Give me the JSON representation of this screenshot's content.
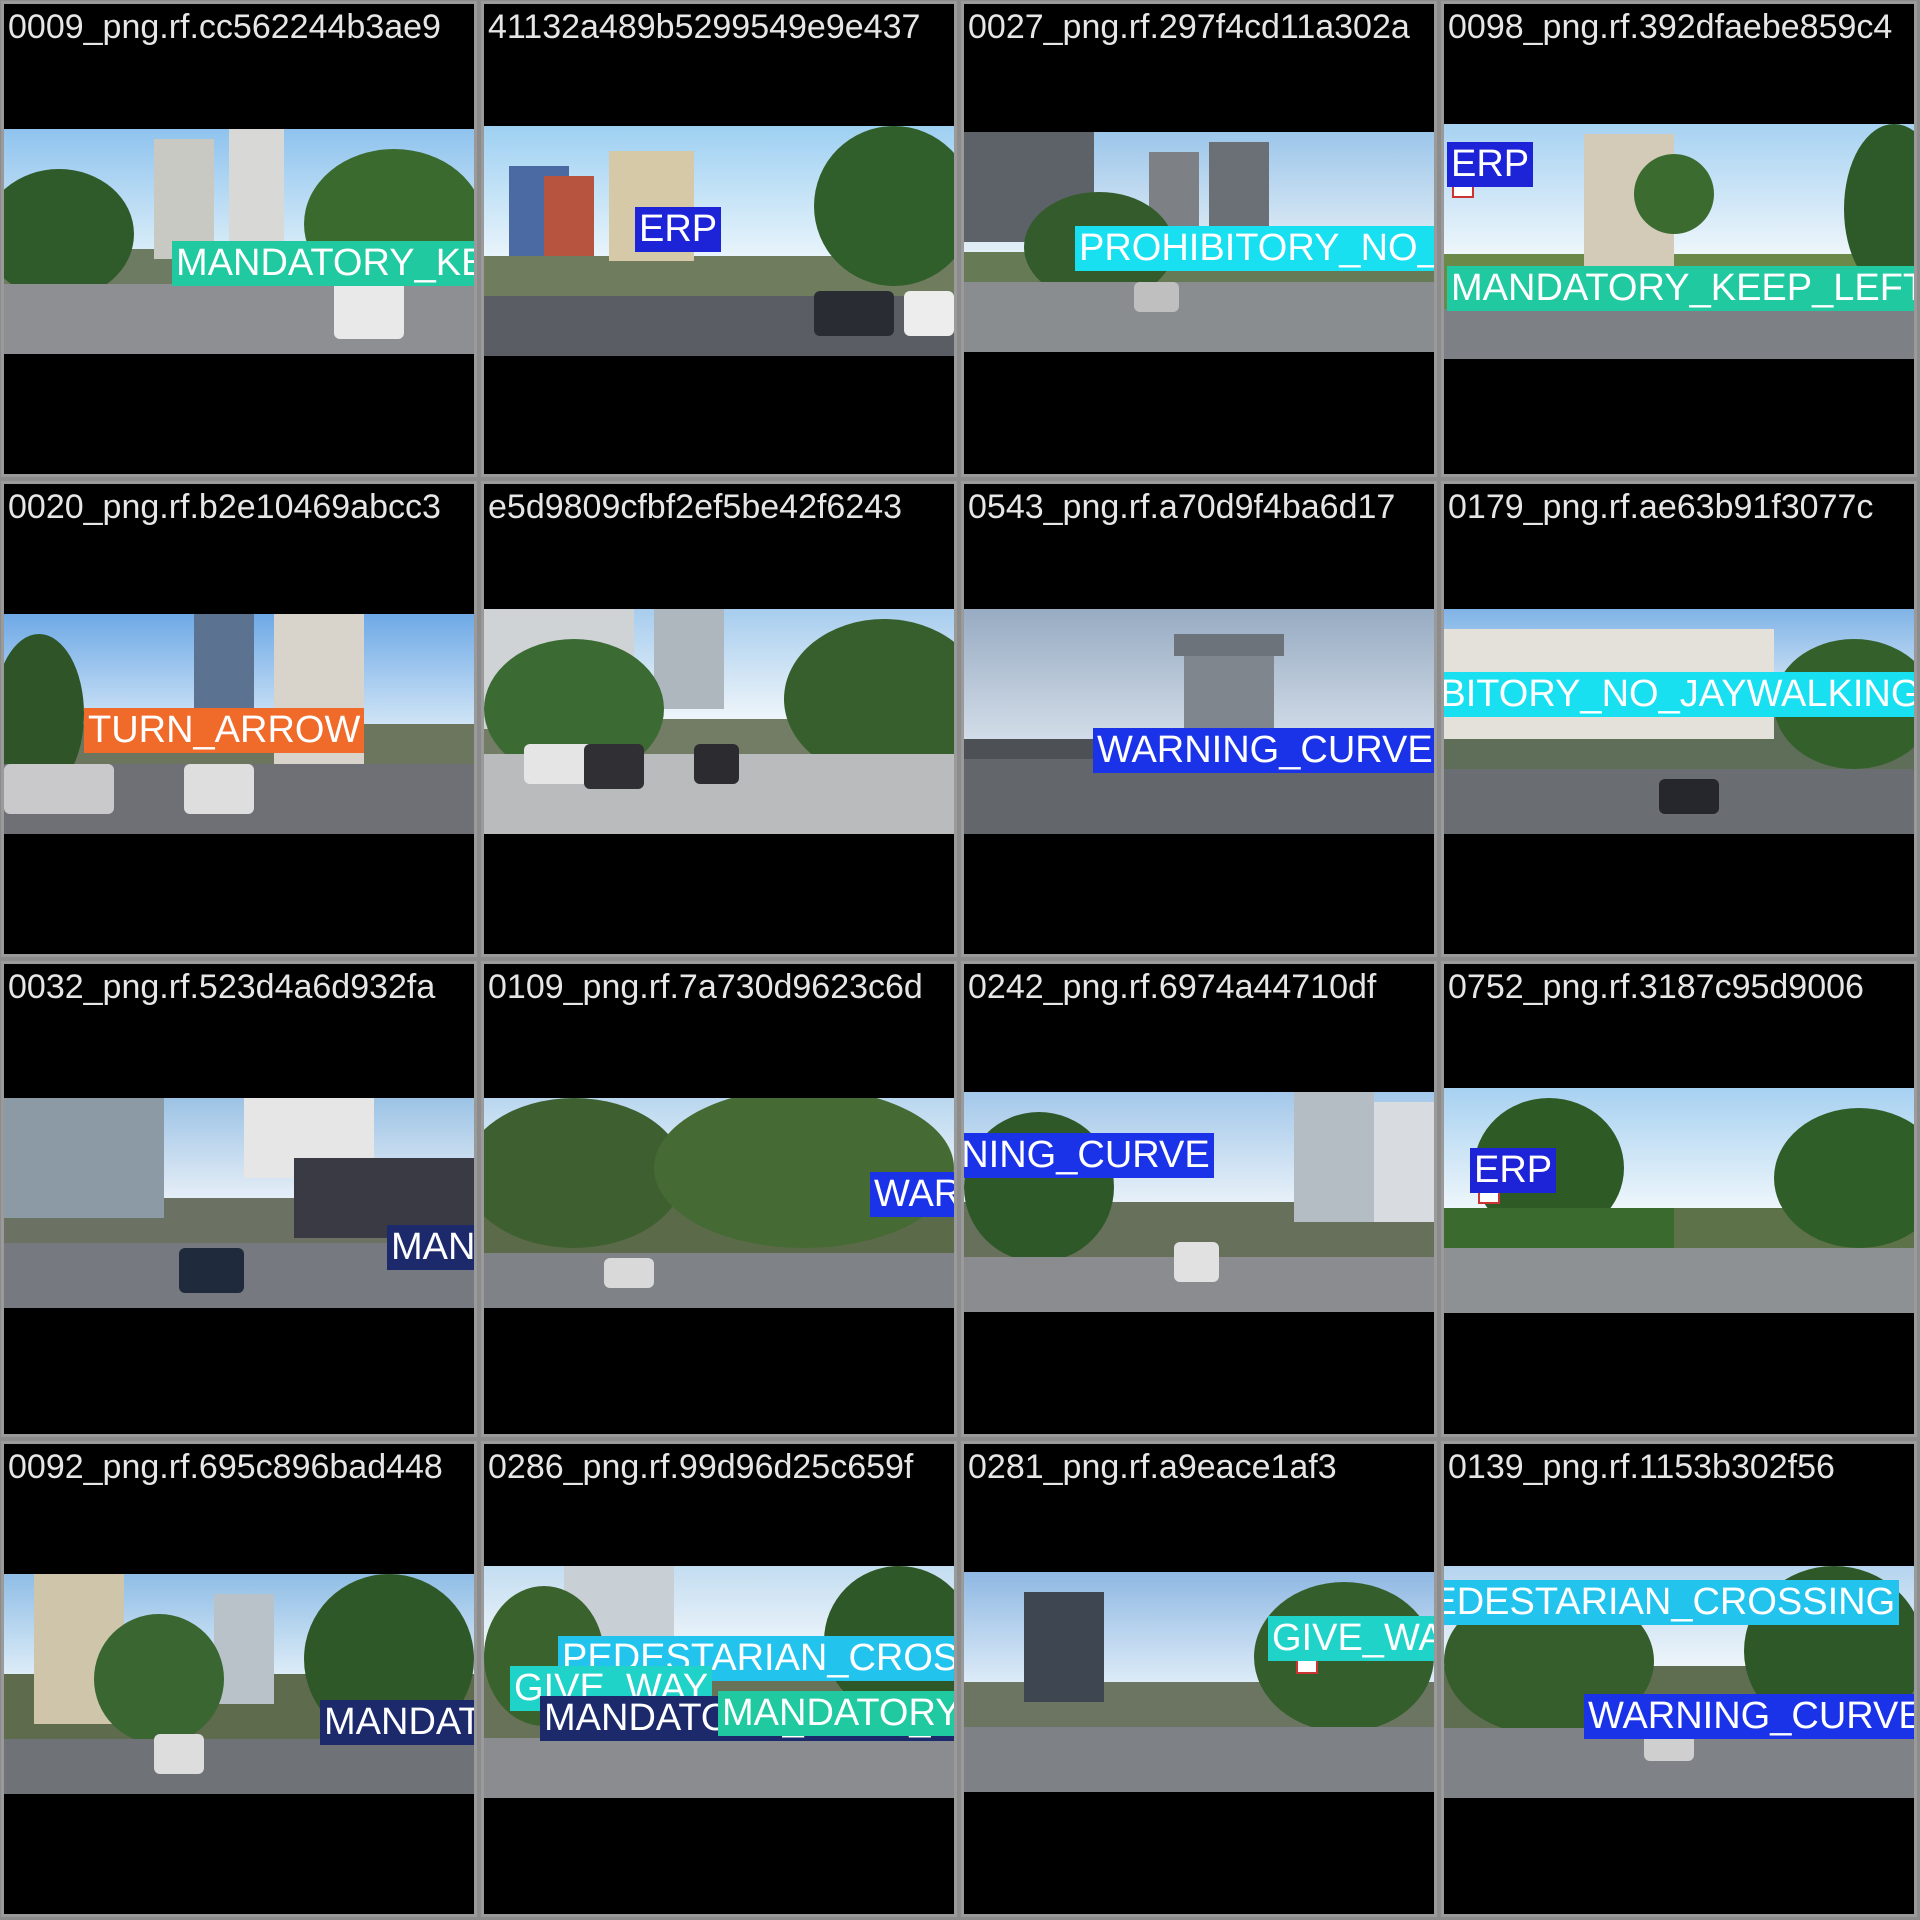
{
  "colors": {
    "erp": "#1d23d6",
    "mandatory_keep_left": "#20c9a0",
    "prohibitory_no_jaywalking": "#19e0f0",
    "turn_arrow": "#f06a2a",
    "warning_curve": "#1a32e8",
    "mandatory_split_way": "#1c2a6b",
    "give_way": "#1fd3c8",
    "pedestarian_crossing": "#22c4ee"
  },
  "tiles": [
    {
      "filename": "0009_png.rf.cc562244b3ae9",
      "labels": [
        {
          "text": "MANDATORY_KEEP_LEFT",
          "color_key": "mandatory_keep_left"
        }
      ]
    },
    {
      "filename": "41132a489b5299549e9e437",
      "labels": [
        {
          "text": "ERP",
          "color_key": "erp"
        }
      ]
    },
    {
      "filename": "0027_png.rf.297f4cd11a302a",
      "labels": [
        {
          "text": "PROHIBITORY_NO_JAYWALKING",
          "color_key": "prohibitory_no_jaywalking"
        }
      ]
    },
    {
      "filename": "0098_png.rf.392dfaebe859c4",
      "labels": [
        {
          "text": "ERP",
          "color_key": "erp"
        },
        {
          "text": "MANDATORY_KEEP_LEFT",
          "color_key": "mandatory_keep_left"
        }
      ]
    },
    {
      "filename": "0020_png.rf.b2e10469abcc3",
      "labels": [
        {
          "text": "TURN_ARROW",
          "color_key": "turn_arrow"
        }
      ]
    },
    {
      "filename": "e5d9809cfbf2ef5be42f6243",
      "labels": []
    },
    {
      "filename": "0543_png.rf.a70d9f4ba6d17",
      "labels": [
        {
          "text": "WARNING_CURVE",
          "color_key": "warning_curve"
        }
      ]
    },
    {
      "filename": "0179_png.rf.ae63b91f3077c",
      "labels": [
        {
          "text": "PROHIBITORY_NO_JAYWALKING",
          "color_key": "prohibitory_no_jaywalking"
        }
      ]
    },
    {
      "filename": "0032_png.rf.523d4a6d932fa",
      "labels": [
        {
          "text": "MANDATORY_SPLIT_WAY",
          "color_key": "mandatory_split_way"
        }
      ]
    },
    {
      "filename": "0109_png.rf.7a730d9623c6d",
      "labels": [
        {
          "text": "WARNING_CURVE",
          "color_key": "warning_curve"
        }
      ]
    },
    {
      "filename": "0242_png.rf.6974a44710df",
      "labels": [
        {
          "text": "WARNING_CURVE",
          "color_key": "warning_curve"
        }
      ]
    },
    {
      "filename": "0752_png.rf.3187c95d9006",
      "labels": [
        {
          "text": "ERP",
          "color_key": "erp"
        }
      ]
    },
    {
      "filename": "0092_png.rf.695c896bad448",
      "labels": [
        {
          "text": "MANDATORY_SPLIT_WAY",
          "color_key": "mandatory_split_way"
        }
      ]
    },
    {
      "filename": "0286_png.rf.99d96d25c659f",
      "labels": [
        {
          "text": "PEDESTARIAN_CROSSING",
          "color_key": "pedestarian_crossing"
        },
        {
          "text": "GIVE_WAY",
          "color_key": "give_way"
        },
        {
          "text": "MANDATORY_SPLIT_WAY",
          "color_key": "mandatory_split_way"
        },
        {
          "text": "MANDATORY_KEEP_LEFT",
          "color_key": "mandatory_keep_left"
        }
      ]
    },
    {
      "filename": "0281_png.rf.a9eace1af3",
      "labels": [
        {
          "text": "GIVE_WAY",
          "color_key": "give_way"
        }
      ]
    },
    {
      "filename": "0139_png.rf.1153b302f56",
      "labels": [
        {
          "text": "PEDESTARIAN_CROSSING",
          "color_key": "pedestarian_crossing"
        },
        {
          "text": "WARNING_CURVE",
          "color_key": "warning_curve"
        }
      ]
    }
  ]
}
